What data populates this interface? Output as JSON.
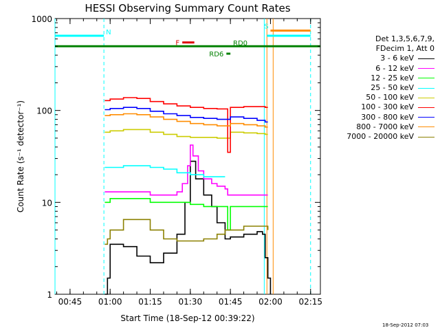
{
  "chart_data": {
    "type": "line",
    "title": "HESSI Observing Summary Count Rates",
    "xlabel": "Start Time (18-Sep-12 00:39:22)",
    "ylabel": "Count Rate (s⁻¹ detector⁻¹)",
    "y_scale": "log",
    "ylim": [
      1,
      1000
    ],
    "xlim": [
      "00:39:22",
      "02:18:40"
    ],
    "x_ticks": [
      "00:45",
      "01:00",
      "01:15",
      "01:30",
      "01:45",
      "02:00",
      "02:15"
    ],
    "y_ticks": [
      "1",
      "10",
      "100",
      "1000"
    ],
    "legend_header": [
      "Det 1,3,5,6,7,9,",
      "FDecim 1, Att 0"
    ],
    "legend_position": "right",
    "series": [
      {
        "name": "3 - 6 keV",
        "color": "#000000",
        "x": [
          "00:58",
          "00:59",
          "01:00",
          "01:05",
          "01:10",
          "01:15",
          "01:20",
          "01:25",
          "01:28",
          "01:30",
          "01:32",
          "01:35",
          "01:38",
          "01:40",
          "01:43",
          "01:44",
          "01:45",
          "01:50",
          "01:55",
          "01:57",
          "01:58",
          "01:59",
          "02:00"
        ],
        "values": [
          1,
          1.5,
          3.5,
          3.3,
          2.6,
          2.2,
          2.8,
          4.5,
          10,
          28,
          18,
          12,
          9,
          6,
          4,
          4,
          4.2,
          4.5,
          4.8,
          4.5,
          2.5,
          1.5,
          1
        ]
      },
      {
        "name": "6 - 12 keV",
        "color": "#ff00ff",
        "x": [
          "00:58",
          "01:00",
          "01:05",
          "01:10",
          "01:15",
          "01:20",
          "01:25",
          "01:27",
          "01:29",
          "01:30",
          "01:31",
          "01:33",
          "01:35",
          "01:38",
          "01:40",
          "01:43",
          "01:44",
          "01:45",
          "01:50",
          "01:55",
          "01:58",
          "01:59"
        ],
        "values": [
          13,
          13,
          13,
          13,
          12,
          12,
          13,
          16,
          25,
          42,
          32,
          22,
          18,
          16,
          15,
          14,
          12,
          12,
          12,
          12,
          12,
          12
        ]
      },
      {
        "name": "12 - 25 keV",
        "color": "#00ff00",
        "x": [
          "00:58",
          "01:00",
          "01:05",
          "01:10",
          "01:15",
          "01:20",
          "01:25",
          "01:30",
          "01:35",
          "01:40",
          "01:43",
          "01:44",
          "01:45",
          "01:50",
          "01:55",
          "01:58",
          "01:59"
        ],
        "values": [
          10,
          11,
          11,
          11,
          10,
          10,
          10,
          9.5,
          9,
          9,
          9,
          5,
          9,
          9,
          9,
          9,
          9
        ]
      },
      {
        "name": "25 - 50 keV",
        "color": "#00ffff",
        "x": [
          "00:58",
          "01:00",
          "01:05",
          "01:10",
          "01:15",
          "01:20",
          "01:25",
          "01:30",
          "01:35",
          "01:40",
          "01:43"
        ],
        "values": [
          24,
          24,
          25,
          25,
          24,
          23,
          21,
          20,
          19,
          19,
          19
        ]
      },
      {
        "name": "50 - 100 keV",
        "color": "#cccc00",
        "x": [
          "00:58",
          "01:00",
          "01:05",
          "01:10",
          "01:15",
          "01:20",
          "01:25",
          "01:30",
          "01:35",
          "01:40",
          "01:43",
          "01:45",
          "01:50",
          "01:55",
          "01:58",
          "01:59"
        ],
        "values": [
          58,
          60,
          62,
          62,
          58,
          55,
          52,
          51,
          51,
          50,
          50,
          58,
          57,
          56,
          55,
          55
        ]
      },
      {
        "name": "100 - 300 keV",
        "color": "#ff0000",
        "x": [
          "00:58",
          "01:00",
          "01:05",
          "01:10",
          "01:15",
          "01:20",
          "01:25",
          "01:30",
          "01:35",
          "01:40",
          "01:43",
          "01:44",
          "01:45",
          "01:50",
          "01:55",
          "01:58",
          "01:59"
        ],
        "values": [
          128,
          133,
          138,
          135,
          125,
          118,
          112,
          108,
          105,
          104,
          104,
          35,
          108,
          110,
          110,
          108,
          108
        ]
      },
      {
        "name": "300 - 800 keV",
        "color": "#0000ff",
        "x": [
          "00:58",
          "01:00",
          "01:05",
          "01:10",
          "01:15",
          "01:20",
          "01:25",
          "01:30",
          "01:35",
          "01:40",
          "01:43",
          "01:45",
          "01:50",
          "01:55",
          "01:58",
          "01:59"
        ],
        "values": [
          102,
          105,
          108,
          105,
          98,
          92,
          88,
          84,
          82,
          80,
          80,
          85,
          82,
          78,
          75,
          75
        ]
      },
      {
        "name": "800 - 7000 keV",
        "color": "#ff8c00",
        "x": [
          "00:58",
          "01:00",
          "01:05",
          "01:10",
          "01:15",
          "01:20",
          "01:25",
          "01:30",
          "01:35",
          "01:40",
          "01:43",
          "01:45",
          "01:50",
          "01:55",
          "01:58",
          "01:59"
        ],
        "values": [
          88,
          90,
          92,
          90,
          85,
          80,
          76,
          72,
          70,
          68,
          68,
          72,
          70,
          68,
          66,
          66
        ]
      },
      {
        "name": "7000 - 20000 keV",
        "color": "#8b8000",
        "x": [
          "00:58",
          "00:59",
          "01:00",
          "01:05",
          "01:10",
          "01:15",
          "01:20",
          "01:25",
          "01:30",
          "01:35",
          "01:40",
          "01:43",
          "01:44",
          "01:50",
          "01:55",
          "01:58",
          "01:59"
        ],
        "values": [
          3.5,
          4,
          5,
          6.5,
          6.5,
          5,
          4,
          3.8,
          3.8,
          4,
          4.5,
          5,
          5,
          5.5,
          5.5,
          5.5,
          5
        ]
      }
    ],
    "status_bars": [
      {
        "label": "N",
        "color": "#00ffff",
        "x": [
          "00:39:22",
          "00:57:40"
        ],
        "level": 650
      },
      {
        "label": "S",
        "color": "#00ffff",
        "x": [
          "01:58:40",
          "02:15:00"
        ],
        "level": 650
      },
      {
        "label": "",
        "color": "#ff8c00",
        "x": [
          "02:00:00",
          "02:15:00"
        ],
        "level": 740
      },
      {
        "label": "F",
        "color": "#dd0000",
        "x": [
          "01:27:00",
          "01:31:30"
        ],
        "level": 550
      },
      {
        "label": "RD0",
        "color": "#008000",
        "x": [
          "00:39:22",
          "02:18:40"
        ],
        "level": 500
      },
      {
        "label": "RD6",
        "color": "#008000",
        "x": [
          "01:43:30",
          "01:45:00"
        ],
        "level": 415
      }
    ],
    "vertical_lines": [
      {
        "x": "00:39:22",
        "color": "#00ffff",
        "style": "solid"
      },
      {
        "x": "00:57:40",
        "color": "#00ffff",
        "style": "dashed"
      },
      {
        "x": "01:57:40",
        "color": "#00ffff",
        "style": "solid"
      },
      {
        "x": "01:58:40",
        "color": "#ff8c00",
        "style": "solid"
      },
      {
        "x": "02:01:00",
        "color": "#ff8c00",
        "style": "solid"
      },
      {
        "x": "02:15:00",
        "color": "#00ffff",
        "style": "dashed"
      }
    ]
  },
  "footer_stamp": "18-Sep-2012 07:03"
}
